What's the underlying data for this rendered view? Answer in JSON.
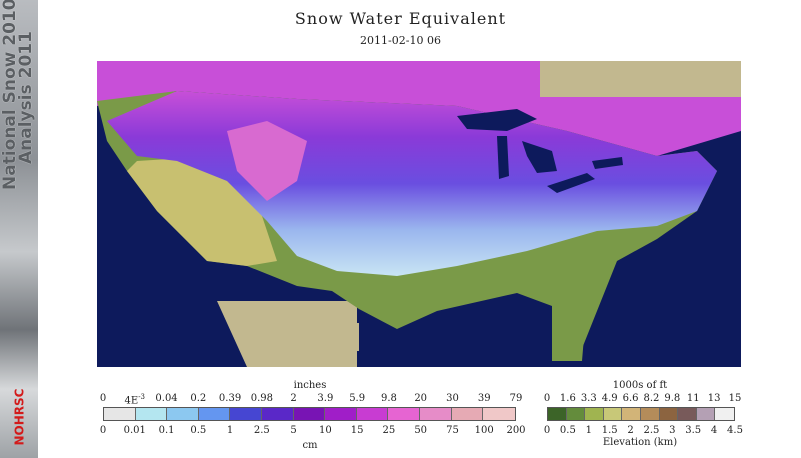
{
  "banner": {
    "text_line1": "National Snow 2010-",
    "text_line2": "Analysis 2011",
    "logo": "NOHRSC"
  },
  "header": {
    "title": "Snow Water Equivalent",
    "subtitle": "2011-02-10 06"
  },
  "swe_legend": {
    "top_unit": "inches",
    "bottom_unit": "cm",
    "inch_ticks": [
      "0",
      "4E-3",
      "0.04",
      "0.2",
      "0.39",
      "0.98",
      "2",
      "3.9",
      "5.9",
      "9.8",
      "20",
      "30",
      "39",
      "79"
    ],
    "cm_ticks": [
      "0",
      "0.01",
      "0.1",
      "0.5",
      "1",
      "2.5",
      "5",
      "10",
      "15",
      "25",
      "50",
      "75",
      "100",
      "200"
    ],
    "colors": [
      "#e6e6e6",
      "#b4e6f0",
      "#8cc8f0",
      "#6496f0",
      "#4646d2",
      "#5a28c8",
      "#7814b4",
      "#a01ec8",
      "#c83cd2",
      "#e664d2",
      "#e68cc8",
      "#e6aab4",
      "#f0c8c8"
    ]
  },
  "elevation_legend": {
    "top_unit": "1000s of ft",
    "bottom_unit": "Elevation (km)",
    "ft_ticks": [
      "0",
      "1.6",
      "3.3",
      "4.9",
      "6.6",
      "8.2",
      "9.8",
      "11",
      "13",
      "15"
    ],
    "km_ticks": [
      "0",
      "0.5",
      "1",
      "1.5",
      "2",
      "2.5",
      "3",
      "3.5",
      "4",
      "4.5"
    ],
    "colors": [
      "#3c6428",
      "#648c3c",
      "#a0b450",
      "#c8c878",
      "#d2b478",
      "#b48c5a",
      "#8c6440",
      "#785a5a",
      "#b4a0b4",
      "#f0f0f0"
    ]
  }
}
